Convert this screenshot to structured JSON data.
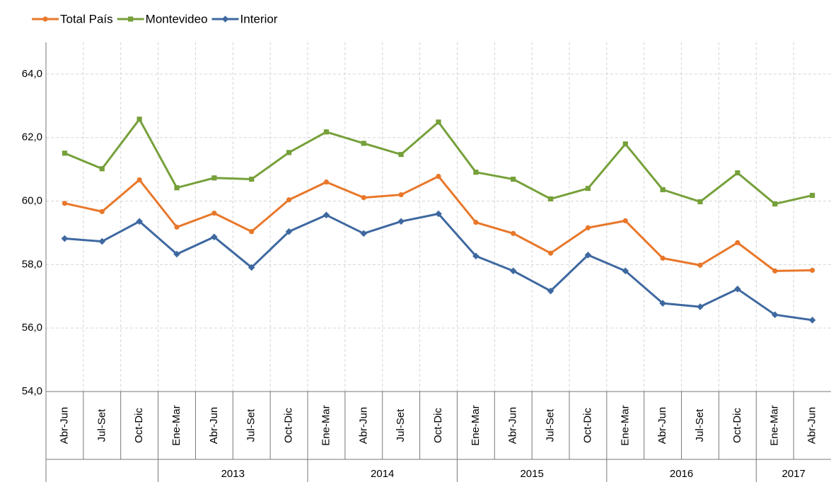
{
  "chart_data": {
    "type": "line",
    "categories": [
      "Abr-Jun",
      "Jul-Set",
      "Oct-Dic",
      "Ene-Mar",
      "Abr-Jun",
      "Jul-Set",
      "Oct-Dic",
      "Ene-Mar",
      "Abr-Jun",
      "Jul-Set",
      "Oct-Dic",
      "Ene-Mar",
      "Abr-Jun",
      "Jul-Set",
      "Oct-Dic",
      "Ene-Mar",
      "Abr-Jun",
      "Jul-Set",
      "Oct-Dic",
      "Ene-Mar",
      "Abr-Jun"
    ],
    "x_groups": [
      null,
      null,
      null,
      "2013",
      "2013",
      "2013",
      "2013",
      "2014",
      "2014",
      "2014",
      "2014",
      "2015",
      "2015",
      "2015",
      "2015",
      "2016",
      "2016",
      "2016",
      "2016",
      "2017",
      "2017"
    ],
    "series": [
      {
        "name": "Total País",
        "color": "#e8772a",
        "marker": "circle",
        "values": [
          59.93,
          59.67,
          60.67,
          59.18,
          59.62,
          59.04,
          60.04,
          60.6,
          60.11,
          60.2,
          60.78,
          59.33,
          58.98,
          58.36,
          59.16,
          59.38,
          58.2,
          57.98,
          58.69,
          57.8,
          57.82
        ]
      },
      {
        "name": "Montevideo",
        "color": "#76a03a",
        "marker": "square",
        "values": [
          61.51,
          61.02,
          62.58,
          60.42,
          60.73,
          60.69,
          61.53,
          62.18,
          61.82,
          61.47,
          62.49,
          60.91,
          60.69,
          60.07,
          60.4,
          61.8,
          60.36,
          59.98,
          60.89,
          59.91,
          60.18
        ]
      },
      {
        "name": "Interior",
        "color": "#3e68a0",
        "marker": "diamond",
        "values": [
          58.82,
          58.73,
          59.36,
          58.33,
          58.87,
          57.91,
          59.04,
          59.56,
          58.98,
          59.36,
          59.6,
          58.27,
          57.8,
          57.17,
          58.3,
          57.8,
          56.78,
          56.67,
          57.23,
          56.42,
          56.25
        ]
      }
    ],
    "ylim": [
      54,
      65
    ],
    "yticks": [
      {
        "value": 54,
        "label": "54,0"
      },
      {
        "value": 56,
        "label": "56,0"
      },
      {
        "value": 58,
        "label": "58,0"
      },
      {
        "value": 60,
        "label": "60,0"
      },
      {
        "value": 62,
        "label": "62,0"
      },
      {
        "value": 64,
        "label": "64,0"
      }
    ],
    "grid": true,
    "legend": "top-left"
  }
}
